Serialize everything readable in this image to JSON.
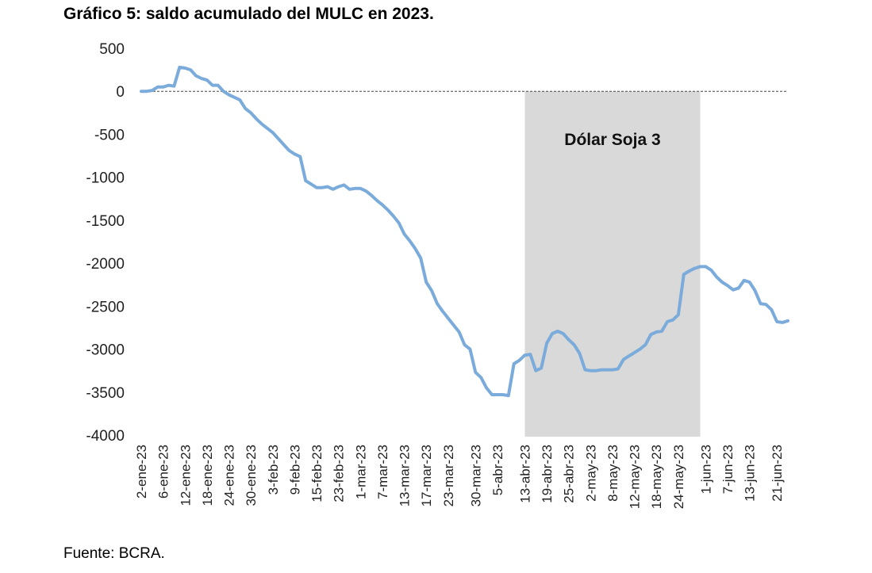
{
  "title": "Gráfico 5: saldo acumulado del MULC en 2023.",
  "source": "Fuente: BCRA.",
  "chart_data": {
    "type": "line",
    "title": "Gráfico 5: saldo acumulado del MULC en 2023.",
    "ylim": [
      -4000,
      500
    ],
    "yticks": [
      500,
      0,
      -500,
      -1000,
      -1500,
      -2000,
      -2500,
      -3000,
      -3500,
      -4000
    ],
    "xtick_labels": [
      "2-ene-23",
      "6-ene-23",
      "12-ene-23",
      "18-ene-23",
      "24-ene-23",
      "30-ene-23",
      "3-feb-23",
      "9-feb-23",
      "15-feb-23",
      "23-feb-23",
      "1-mar-23",
      "7-mar-23",
      "13-mar-23",
      "17-mar-23",
      "23-mar-23",
      "30-mar-23",
      "5-abr-23",
      "13-abr-23",
      "19-abr-23",
      "25-abr-23",
      "2-may-23",
      "8-may-23",
      "12-may-23",
      "18-may-23",
      "24-may-23",
      "1-jun-23",
      "7-jun-23",
      "13-jun-23",
      "21-jun-23"
    ],
    "reference_line": {
      "y": 0,
      "style": "dashed"
    },
    "shaded_region": {
      "from": "13-abr-23",
      "to": "31-may-23",
      "label": "Dólar Soja 3",
      "color": "#d9d9d9"
    },
    "series": [
      {
        "color": "#7aabdb",
        "points": [
          [
            "2-ene-23",
            0
          ],
          [
            "3-ene-23",
            0
          ],
          [
            "4-ene-23",
            10
          ],
          [
            "5-ene-23",
            50
          ],
          [
            "6-ene-23",
            50
          ],
          [
            "9-ene-23",
            70
          ],
          [
            "10-ene-23",
            60
          ],
          [
            "11-ene-23",
            280
          ],
          [
            "12-ene-23",
            270
          ],
          [
            "13-ene-23",
            250
          ],
          [
            "16-ene-23",
            180
          ],
          [
            "17-ene-23",
            150
          ],
          [
            "18-ene-23",
            130
          ],
          [
            "19-ene-23",
            70
          ],
          [
            "20-ene-23",
            70
          ],
          [
            "23-ene-23",
            0
          ],
          [
            "24-ene-23",
            -40
          ],
          [
            "25-ene-23",
            -70
          ],
          [
            "26-ene-23",
            -100
          ],
          [
            "27-ene-23",
            -200
          ],
          [
            "30-ene-23",
            -250
          ],
          [
            "31-ene-23",
            -320
          ],
          [
            "1-feb-23",
            -380
          ],
          [
            "2-feb-23",
            -430
          ],
          [
            "3-feb-23",
            -480
          ],
          [
            "6-feb-23",
            -550
          ],
          [
            "7-feb-23",
            -620
          ],
          [
            "8-feb-23",
            -690
          ],
          [
            "9-feb-23",
            -730
          ],
          [
            "10-feb-23",
            -760
          ],
          [
            "13-feb-23",
            -1040
          ],
          [
            "14-feb-23",
            -1080
          ],
          [
            "15-feb-23",
            -1120
          ],
          [
            "16-feb-23",
            -1120
          ],
          [
            "17-feb-23",
            -1110
          ],
          [
            "22-feb-23",
            -1140
          ],
          [
            "23-feb-23",
            -1110
          ],
          [
            "24-feb-23",
            -1090
          ],
          [
            "27-feb-23",
            -1140
          ],
          [
            "28-feb-23",
            -1130
          ],
          [
            "1-mar-23",
            -1130
          ],
          [
            "2-mar-23",
            -1160
          ],
          [
            "3-mar-23",
            -1210
          ],
          [
            "6-mar-23",
            -1270
          ],
          [
            "7-mar-23",
            -1320
          ],
          [
            "8-mar-23",
            -1380
          ],
          [
            "9-mar-23",
            -1450
          ],
          [
            "10-mar-23",
            -1530
          ],
          [
            "13-mar-23",
            -1660
          ],
          [
            "14-mar-23",
            -1740
          ],
          [
            "15-mar-23",
            -1830
          ],
          [
            "16-mar-23",
            -1940
          ],
          [
            "17-mar-23",
            -2220
          ],
          [
            "20-mar-23",
            -2320
          ],
          [
            "21-mar-23",
            -2470
          ],
          [
            "22-mar-23",
            -2560
          ],
          [
            "23-mar-23",
            -2640
          ],
          [
            "24-mar-23",
            -2720
          ],
          [
            "27-mar-23",
            -2800
          ],
          [
            "28-mar-23",
            -2950
          ],
          [
            "29-mar-23",
            -3000
          ],
          [
            "30-mar-23",
            -3270
          ],
          [
            "31-mar-23",
            -3330
          ],
          [
            "3-abr-23",
            -3450
          ],
          [
            "4-abr-23",
            -3530
          ],
          [
            "5-abr-23",
            -3530
          ],
          [
            "6-abr-23",
            -3530
          ],
          [
            "10-abr-23",
            -3540
          ],
          [
            "11-abr-23",
            -3170
          ],
          [
            "12-abr-23",
            -3130
          ],
          [
            "13-abr-23",
            -3070
          ],
          [
            "14-abr-23",
            -3060
          ],
          [
            "17-abr-23",
            -3250
          ],
          [
            "18-abr-23",
            -3220
          ],
          [
            "19-abr-23",
            -2930
          ],
          [
            "20-abr-23",
            -2820
          ],
          [
            "21-abr-23",
            -2790
          ],
          [
            "24-abr-23",
            -2820
          ],
          [
            "25-abr-23",
            -2890
          ],
          [
            "26-abr-23",
            -2950
          ],
          [
            "27-abr-23",
            -3050
          ],
          [
            "28-abr-23",
            -3240
          ],
          [
            "2-may-23",
            -3250
          ],
          [
            "3-may-23",
            -3250
          ],
          [
            "4-may-23",
            -3240
          ],
          [
            "5-may-23",
            -3240
          ],
          [
            "8-may-23",
            -3240
          ],
          [
            "9-may-23",
            -3230
          ],
          [
            "10-may-23",
            -3120
          ],
          [
            "11-may-23",
            -3080
          ],
          [
            "12-may-23",
            -3040
          ],
          [
            "15-may-23",
            -3000
          ],
          [
            "16-may-23",
            -2950
          ],
          [
            "17-may-23",
            -2830
          ],
          [
            "18-may-23",
            -2800
          ],
          [
            "19-may-23",
            -2790
          ],
          [
            "22-may-23",
            -2680
          ],
          [
            "23-may-23",
            -2660
          ],
          [
            "24-may-23",
            -2600
          ],
          [
            "26-may-23",
            -2130
          ],
          [
            "29-may-23",
            -2090
          ],
          [
            "30-may-23",
            -2060
          ],
          [
            "31-may-23",
            -2040
          ],
          [
            "1-jun-23",
            -2040
          ],
          [
            "2-jun-23",
            -2080
          ],
          [
            "5-jun-23",
            -2160
          ],
          [
            "6-jun-23",
            -2220
          ],
          [
            "7-jun-23",
            -2260
          ],
          [
            "8-jun-23",
            -2310
          ],
          [
            "9-jun-23",
            -2290
          ],
          [
            "12-jun-23",
            -2200
          ],
          [
            "13-jun-23",
            -2220
          ],
          [
            "14-jun-23",
            -2320
          ],
          [
            "15-jun-23",
            -2470
          ],
          [
            "16-jun-23",
            -2480
          ],
          [
            "19-jun-23",
            -2540
          ],
          [
            "21-jun-23",
            -2680
          ],
          [
            "22-jun-23",
            -2690
          ],
          [
            "23-jun-23",
            -2670
          ]
        ]
      }
    ]
  }
}
